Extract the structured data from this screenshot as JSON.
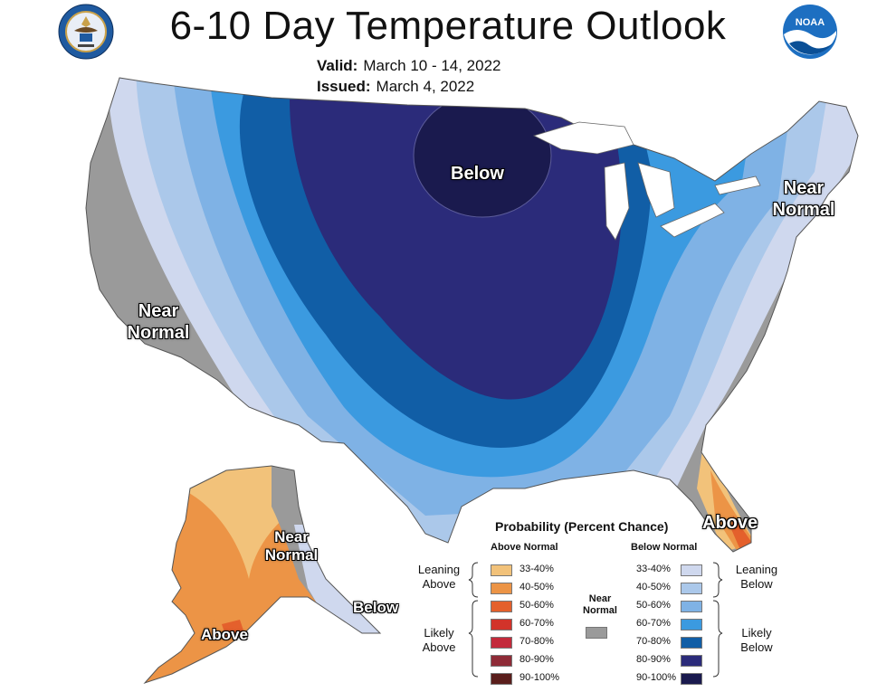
{
  "header": {
    "title": "6-10 Day Temperature Outlook",
    "valid_label": "Valid:",
    "valid_value": "March 10 - 14, 2022",
    "issued_label": "Issued:",
    "issued_value": "March 4, 2022"
  },
  "logos": {
    "left": "department-of-commerce-seal",
    "right": "noaa-logo",
    "right_text": "NOAA"
  },
  "map_labels": {
    "below": "Below",
    "near_normal_ne": [
      "Near",
      "Normal"
    ],
    "near_normal_w": [
      "Near",
      "Normal"
    ],
    "above_fl": "Above",
    "near_normal_ak": [
      "Near",
      "Normal"
    ],
    "above_ak": "Above",
    "below_ak": "Below"
  },
  "legend": {
    "title": "Probability (Percent Chance)",
    "above_header": "Above Normal",
    "below_header": "Below Normal",
    "near_normal_label": [
      "Near",
      "Normal"
    ],
    "above_items": [
      {
        "label": "33-40%",
        "color": "#f2c27a"
      },
      {
        "label": "40-50%",
        "color": "#ec9446"
      },
      {
        "label": "50-60%",
        "color": "#e4602c"
      },
      {
        "label": "60-70%",
        "color": "#d2332a"
      },
      {
        "label": "70-80%",
        "color": "#c32a3b"
      },
      {
        "label": "80-90%",
        "color": "#8e2b37"
      },
      {
        "label": "90-100%",
        "color": "#5a1e1c"
      }
    ],
    "below_items": [
      {
        "label": "33-40%",
        "color": "#cfd8ee"
      },
      {
        "label": "40-50%",
        "color": "#abc8ea"
      },
      {
        "label": "50-60%",
        "color": "#7fb2e5"
      },
      {
        "label": "60-70%",
        "color": "#3b9ae0"
      },
      {
        "label": "70-80%",
        "color": "#115ea6"
      },
      {
        "label": "80-90%",
        "color": "#2b2b7a"
      },
      {
        "label": "90-100%",
        "color": "#1a1a4e"
      }
    ],
    "near_normal_color": "#9a9a9a",
    "leaning_above": [
      "Leaning",
      "Above"
    ],
    "likely_above": [
      "Likely",
      "Above"
    ],
    "leaning_below": [
      "Leaning",
      "Below"
    ],
    "likely_below": [
      "Likely",
      "Below"
    ]
  },
  "colors": {
    "near_normal": "#9a9a9a",
    "below_33_40": "#cfd8ee",
    "below_40_50": "#abc8ea",
    "below_50_60": "#7fb2e5",
    "below_60_70": "#3b9ae0",
    "below_70_80": "#115ea6",
    "below_80_90": "#2b2b7a",
    "below_90_100": "#1a1a4e",
    "above_33_40": "#f2c27a",
    "above_40_50": "#ec9446",
    "above_50_60": "#e4602c"
  }
}
